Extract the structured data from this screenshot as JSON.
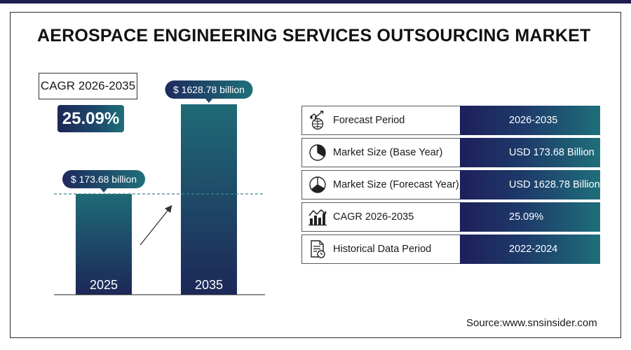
{
  "title": "AEROSPACE ENGINEERING SERVICES OUTSOURCING MARKET",
  "cagr": {
    "label": "CAGR 2026-2035",
    "value": "25.09%"
  },
  "chart_data": {
    "type": "bar",
    "categories": [
      "2025",
      "2035"
    ],
    "values": [
      173.68,
      1628.78
    ],
    "value_labels": [
      "$ 173.68 billion",
      "$ 1628.78 billion"
    ],
    "unit": "USD billion",
    "title": "",
    "xlabel": "",
    "ylabel": "",
    "grid": false,
    "legend": "none"
  },
  "summary": {
    "rows": [
      {
        "icon": "forecast-chart-icon",
        "label": "Forecast Period",
        "value": "2026-2035"
      },
      {
        "icon": "pie-chart-icon",
        "label": "Market Size (Base Year)",
        "value": "USD 173.68 Billion"
      },
      {
        "icon": "pie-chart-icon",
        "label": "Market Size (Forecast Year)",
        "value": "USD 1628.78 Billion"
      },
      {
        "icon": "growth-bars-icon",
        "label": "CAGR 2026-2035",
        "value": "25.09%"
      },
      {
        "icon": "report-document-icon",
        "label": "Historical Data Period",
        "value": "2022-2024"
      }
    ]
  },
  "source": "Source:www.snsinsider.com",
  "colors": {
    "dark_navy": "#1f1d4f",
    "teal": "#1f6f7a",
    "bar_top": "#1f6a76",
    "bar_bottom": "#1d2858",
    "dashed_line": "#3e8a8f"
  }
}
